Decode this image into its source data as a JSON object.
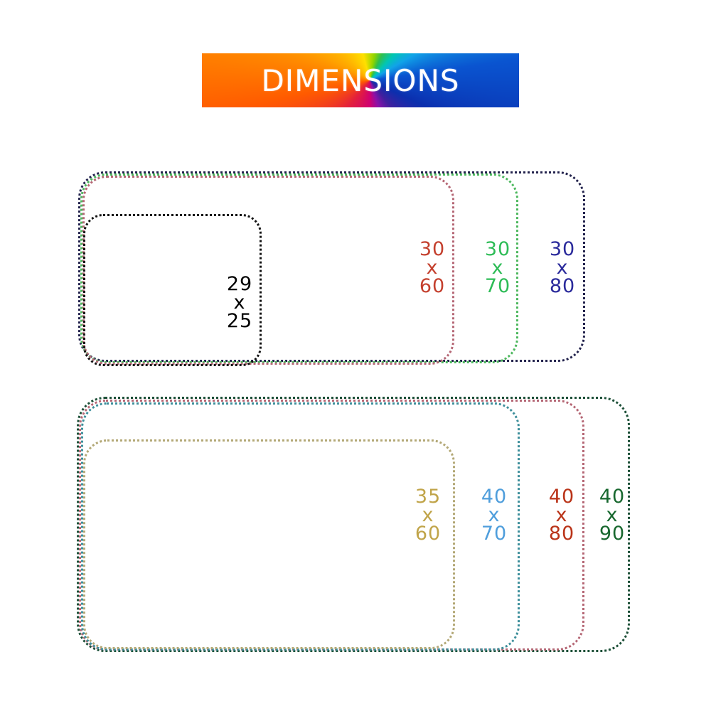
{
  "banner": {
    "title": "DIMENSIONS",
    "text_color": "#ffffff",
    "background": "rainbow-conic-gradient"
  },
  "groups": [
    {
      "id": "top",
      "rects": [
        {
          "id": "29x25",
          "lines": [
            "29",
            "x",
            "25"
          ],
          "border_color": "#131313",
          "label_color": "#000000"
        },
        {
          "id": "30x60",
          "lines": [
            "30",
            "x",
            "60"
          ],
          "border_color": "#b56775",
          "label_color": "#c4402e"
        },
        {
          "id": "30x70",
          "lines": [
            "30",
            "x",
            "70"
          ],
          "border_color": "#4db85e",
          "label_color": "#2ebc57"
        },
        {
          "id": "30x80",
          "lines": [
            "30",
            "x",
            "80"
          ],
          "border_color": "#23234d",
          "label_color": "#2a2a9b"
        }
      ]
    },
    {
      "id": "bottom",
      "rects": [
        {
          "id": "35x60",
          "lines": [
            "35",
            "x",
            "60"
          ],
          "border_color": "#b3a876",
          "label_color": "#c0a449"
        },
        {
          "id": "40x70",
          "lines": [
            "40",
            "x",
            "70"
          ],
          "border_color": "#3d8f9b",
          "label_color": "#4f9edc"
        },
        {
          "id": "40x80",
          "lines": [
            "40",
            "x",
            "80"
          ],
          "border_color": "#b56775",
          "label_color": "#ba3419"
        },
        {
          "id": "40x90",
          "lines": [
            "40",
            "x",
            "90"
          ],
          "border_color": "#1d5038",
          "label_color": "#18682f"
        }
      ]
    }
  ]
}
